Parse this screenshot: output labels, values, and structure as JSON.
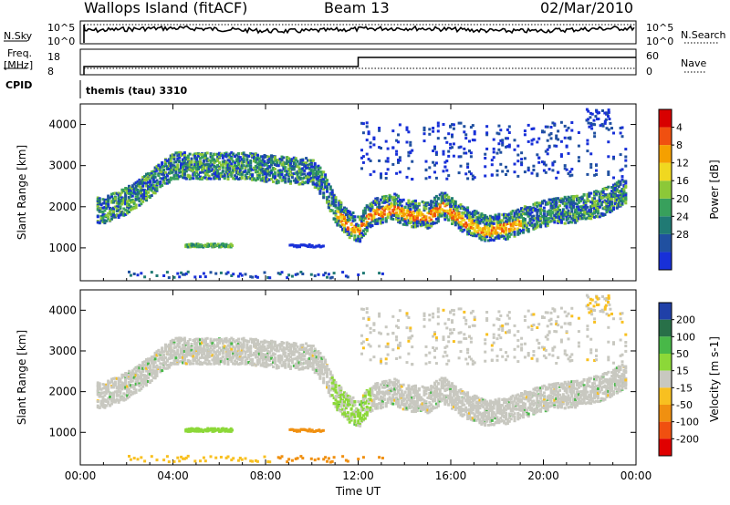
{
  "header": {
    "station": "Wallops Island (fitACF)",
    "beam": "Beam 13",
    "date": "02/Mar/2010"
  },
  "panels": {
    "nsky": {
      "left_label": "N.Sky",
      "right_label": "N.Search",
      "tick_top": "10^5",
      "tick_bottom": "10^0"
    },
    "freq": {
      "left_label_top": "Freq.",
      "left_label_unit": "[MHz]",
      "right_label": "Nave",
      "left_tick_top": "18",
      "left_tick_bottom": "8",
      "right_tick_top": "60",
      "right_tick_bottom": "0"
    },
    "cpid": {
      "label": "CPID",
      "mode_text": "themis (tau) 3310"
    }
  },
  "chart_data": [
    {
      "type": "heatmap",
      "quantity": "Power",
      "ylabel": "Slant Range [km]",
      "colorbar_label": "Power [dB]",
      "colorbar_ticks": [
        "4",
        "8",
        "12",
        "16",
        "20",
        "24",
        "28"
      ],
      "colorbar_range": [
        0,
        32
      ],
      "ylim": [
        200,
        4500
      ],
      "yticks": [
        "1000",
        "2000",
        "3000",
        "4000"
      ],
      "xlim_hours": [
        0,
        24
      ],
      "colors": [
        "#1830d8",
        "#2050a0",
        "#207a74",
        "#38a05c",
        "#8cc838",
        "#f0d820",
        "#f5a000",
        "#f05010",
        "#d80000"
      ]
    },
    {
      "type": "heatmap",
      "quantity": "Velocity",
      "ylabel": "Slant Range [km]",
      "colorbar_label": "Velocity [m s-1]",
      "colorbar_ticks": [
        "200",
        "100",
        "50",
        "15",
        "-15",
        "-50",
        "-100",
        "-200"
      ],
      "ylim": [
        200,
        4500
      ],
      "yticks": [
        "1000",
        "2000",
        "3000",
        "4000"
      ],
      "xlim_hours": [
        0,
        24
      ],
      "colors": [
        "#2040a8",
        "#287048",
        "#48b848",
        "#8cd838",
        "#c8c8c0",
        "#f8c020",
        "#f09010",
        "#f05010",
        "#e00000"
      ]
    }
  ],
  "xaxis": {
    "label": "Time UT",
    "ticks": [
      "00:00",
      "04:00",
      "08:00",
      "12:00",
      "16:00",
      "20:00",
      "00:00"
    ]
  }
}
